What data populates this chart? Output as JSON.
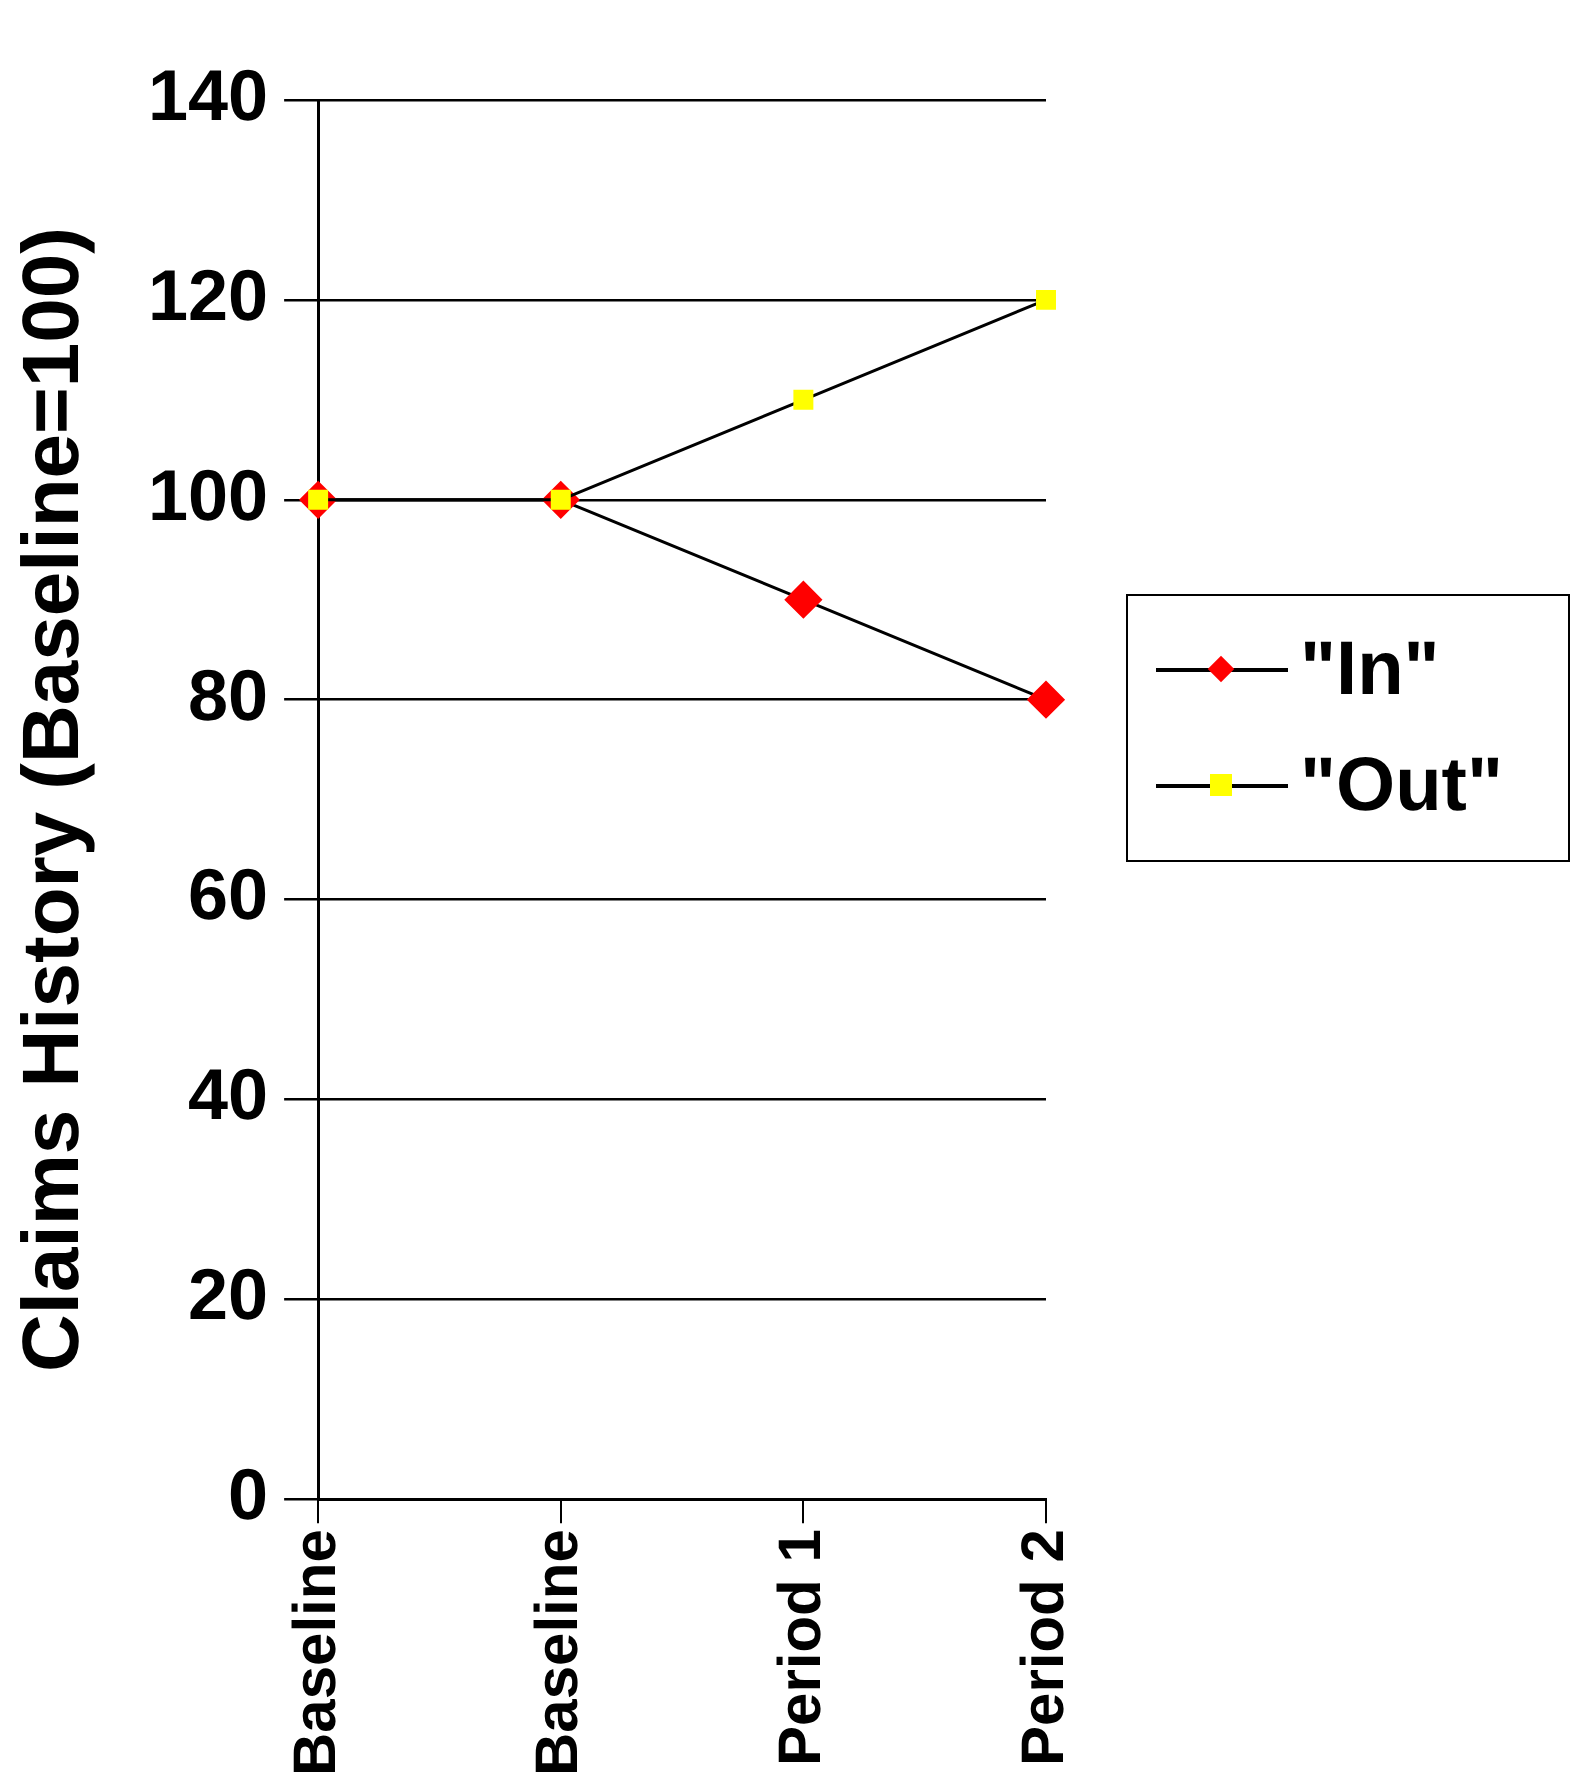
{
  "chart_data": {
    "type": "line",
    "ylabel": "Claims History (Baseline=100)",
    "categories": [
      "Baseline",
      "Baseline",
      "Period 1",
      "Period 2"
    ],
    "series": [
      {
        "name": "\"In\"",
        "color": "#ff0000",
        "marker": "diamond",
        "values": [
          100,
          100,
          90,
          80
        ]
      },
      {
        "name": "\"Out\"",
        "color": "#ffff00",
        "marker": "square",
        "values": [
          100,
          100,
          110,
          120
        ]
      }
    ],
    "ylim": [
      0,
      140
    ],
    "yticks": [
      0,
      20,
      40,
      60,
      80,
      100,
      120,
      140
    ],
    "grid": "y",
    "legend": "right"
  }
}
